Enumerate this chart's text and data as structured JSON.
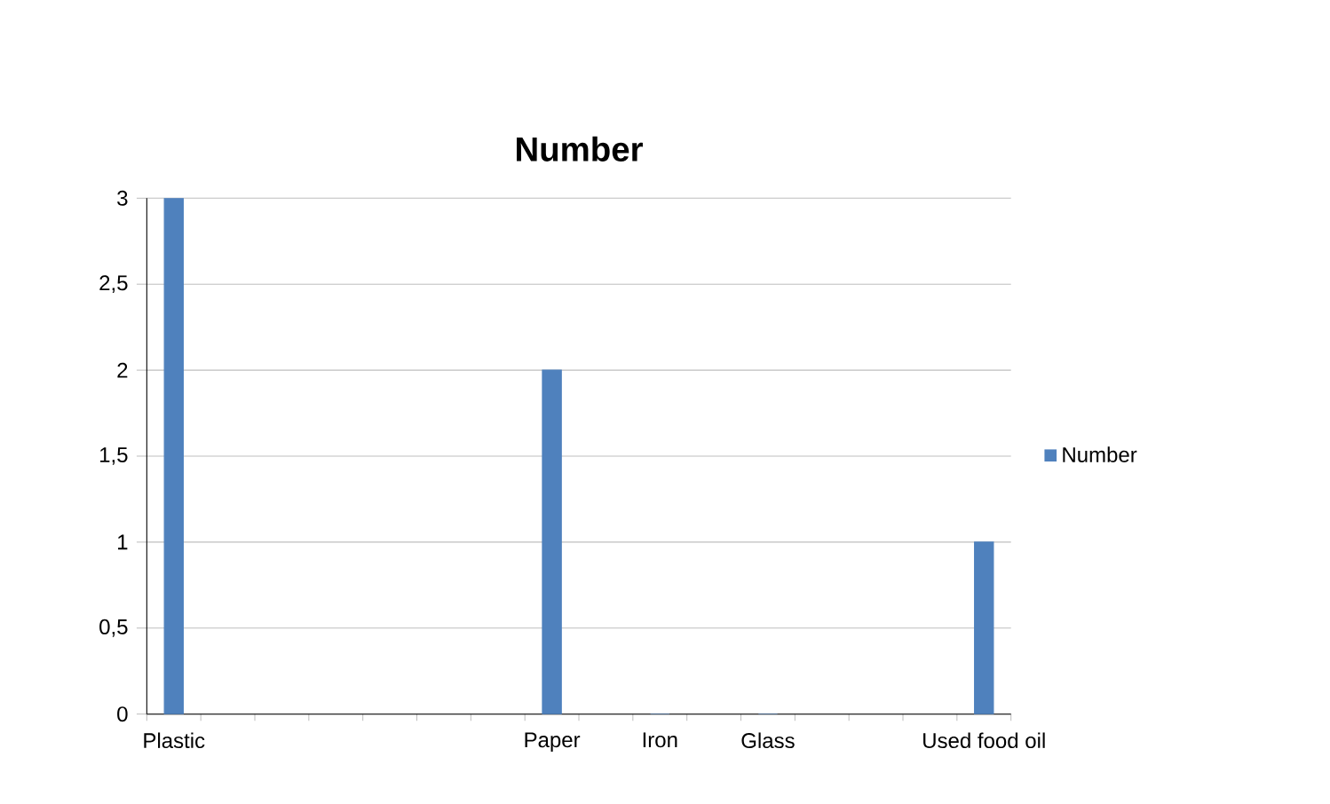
{
  "chart_data": {
    "type": "bar",
    "title": "Number",
    "categories": [
      "Plastic",
      null,
      null,
      null,
      null,
      null,
      null,
      "Paper",
      null,
      "Iron",
      null,
      "Glass",
      null,
      null,
      null,
      "Used food oil"
    ],
    "series": [
      {
        "name": "Number",
        "color": "#4f81bd",
        "values": [
          3,
          null,
          null,
          null,
          null,
          null,
          null,
          2,
          null,
          0,
          null,
          0,
          null,
          null,
          null,
          1
        ]
      }
    ],
    "ylim": [
      0,
      3
    ],
    "yticks": [
      0,
      {
        "value": 0.5,
        "label": "0,5"
      },
      1,
      {
        "value": 1.5,
        "label": "1,5"
      },
      2,
      {
        "value": 2.5,
        "label": "2,5"
      },
      3
    ],
    "grid": "y",
    "legend": "right"
  }
}
